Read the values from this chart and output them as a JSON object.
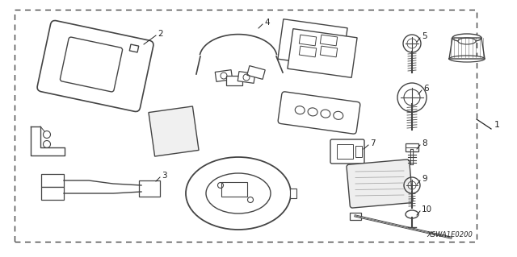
{
  "code": "XSWA1E0200",
  "background": "#ffffff",
  "bc": "#444444",
  "tc": "#222222",
  "fig_width": 6.4,
  "fig_height": 3.19,
  "dpi": 100
}
